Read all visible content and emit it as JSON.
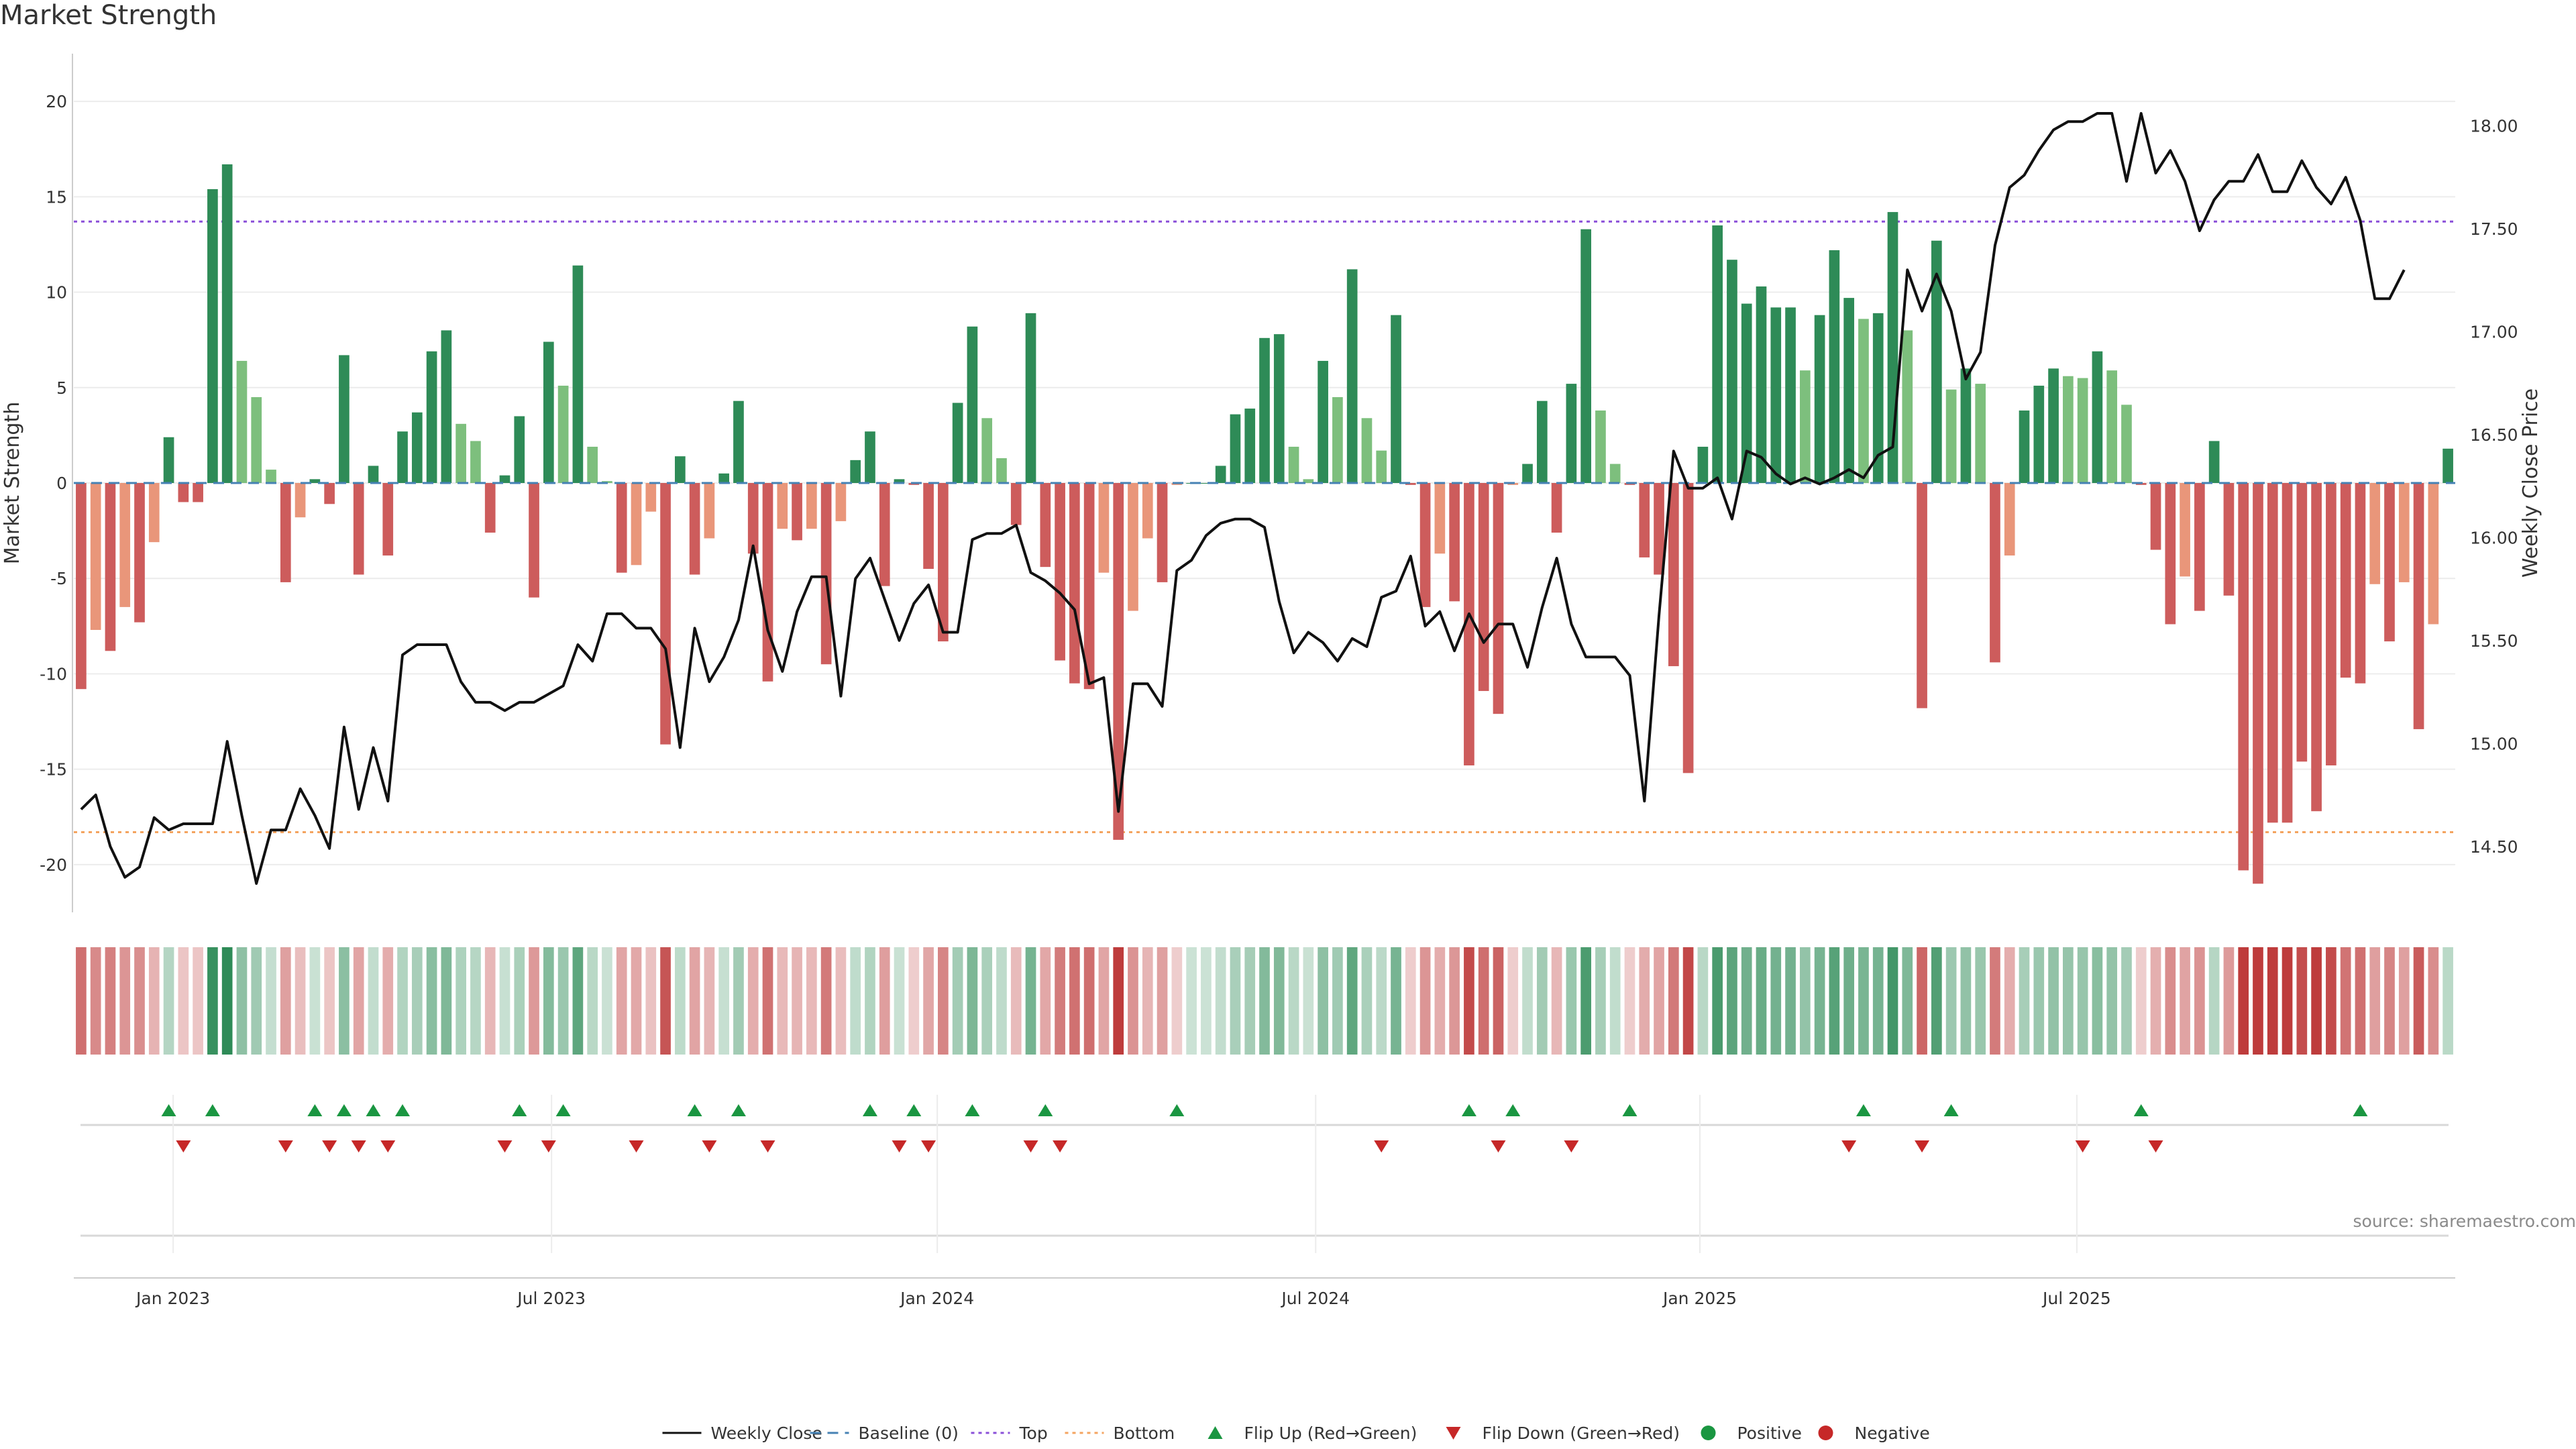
{
  "title": "Market Strength",
  "source": "source: sharemaestro.com",
  "colors": {
    "strong_green": "#2e8b57",
    "light_green": "#7dbf7d",
    "strong_red": "#cd5c5c",
    "light_red": "#e9967a",
    "top_line": "#8a4fd8",
    "bottom_line": "#f4a460",
    "baseline": "#4682b4",
    "close_line": "#111111",
    "flip_up": "#1a9641",
    "flip_down": "#c62828"
  },
  "chart_data": {
    "type": "bar",
    "y_left": {
      "label": "Market Strength",
      "range": [
        -22.5,
        22.5
      ],
      "ticks": [
        20,
        15,
        10,
        5,
        0,
        -5,
        -10,
        -15,
        -20
      ]
    },
    "y_right": {
      "label": "Weekly Close Price",
      "range": [
        14.18,
        18.35
      ],
      "ticks": [
        "18.00",
        "17.50",
        "17.00",
        "16.50",
        "16.00",
        "15.50",
        "15.00",
        "14.50"
      ]
    },
    "x_ticks": [
      "Jan 2023",
      "Jul 2023",
      "Jan 2024",
      "Jul 2024",
      "Jan 2025",
      "Jul 2025"
    ],
    "x_tick_weeks": [
      6.8,
      32.7,
      59.1,
      85.0,
      111.3,
      137.1
    ],
    "top_level": 13.7,
    "bottom_level": -18.3,
    "strength": [
      -10.8,
      -7.7,
      -8.8,
      -6.5,
      -7.3,
      -3.1,
      2.4,
      -1.0,
      -1.0,
      15.4,
      16.7,
      6.4,
      4.5,
      0.7,
      -5.2,
      -1.8,
      0.2,
      -1.1,
      6.7,
      -4.8,
      0.9,
      -3.8,
      2.7,
      3.7,
      6.9,
      8.0,
      3.1,
      2.2,
      -2.6,
      0.4,
      3.5,
      -6.0,
      7.4,
      5.1,
      11.4,
      1.9,
      0.1,
      -4.7,
      -4.3,
      -1.5,
      -13.7,
      1.4,
      -4.8,
      -2.9,
      0.5,
      4.3,
      -3.7,
      -10.4,
      -2.4,
      -3.0,
      -2.4,
      -9.5,
      -2.0,
      1.2,
      2.7,
      -5.4,
      0.2,
      -0.1,
      -4.5,
      -8.3,
      4.2,
      8.2,
      3.4,
      1.3,
      -2.2,
      8.9,
      -4.4,
      -9.3,
      -10.5,
      -10.8,
      -4.7,
      -18.7,
      -6.7,
      -2.9,
      -5.2,
      -0.1,
      0.0,
      0.0,
      0.9,
      3.6,
      3.9,
      7.6,
      7.8,
      1.9,
      0.2,
      6.4,
      4.5,
      11.2,
      3.4,
      1.7,
      8.8,
      -0.1,
      -6.5,
      -3.7,
      -6.2,
      -14.8,
      -10.9,
      -12.1,
      -0.1,
      1.0,
      4.3,
      -2.6,
      5.2,
      13.3,
      3.8,
      1.0,
      -0.1,
      -3.9,
      -4.8,
      -9.6,
      -15.2,
      1.9,
      13.5,
      11.7,
      9.4,
      10.3,
      9.2,
      9.2,
      5.9,
      8.8,
      12.2,
      9.7,
      8.6,
      8.9,
      14.2,
      8.0,
      -11.8,
      12.7,
      4.9,
      6.0,
      5.2,
      -9.4,
      -3.8,
      3.8,
      5.1,
      6.0,
      5.6,
      5.5,
      6.9,
      5.9,
      4.1,
      -0.1,
      -3.5,
      -7.4,
      -4.9,
      -6.7,
      2.2,
      -5.9,
      -20.3,
      -21.0,
      -17.8,
      -17.8,
      -14.6,
      -17.2,
      -14.8,
      -10.2,
      -10.5,
      -5.3,
      -8.3,
      -5.2,
      -12.9,
      -7.4,
      1.8
    ],
    "weekly_close": [
      14.68,
      14.75,
      14.5,
      14.35,
      14.4,
      14.64,
      14.58,
      14.61,
      14.61,
      14.61,
      15.01,
      14.65,
      14.32,
      14.58,
      14.58,
      14.78,
      14.65,
      14.49,
      15.08,
      14.68,
      14.98,
      14.72,
      15.43,
      15.48,
      15.48,
      15.48,
      15.3,
      15.2,
      15.2,
      15.16,
      15.2,
      15.2,
      15.24,
      15.28,
      15.48,
      15.4,
      15.63,
      15.63,
      15.56,
      15.56,
      15.46,
      14.98,
      15.56,
      15.3,
      15.42,
      15.6,
      15.96,
      15.55,
      15.35,
      15.64,
      15.81,
      15.81,
      15.23,
      15.8,
      15.9,
      15.7,
      15.5,
      15.68,
      15.77,
      15.54,
      15.54,
      15.99,
      16.02,
      16.02,
      16.06,
      15.83,
      15.79,
      15.73,
      15.65,
      15.29,
      15.32,
      14.67,
      15.29,
      15.29,
      15.18,
      15.84,
      15.89,
      16.01,
      16.07,
      16.09,
      16.09,
      16.05,
      15.69,
      15.44,
      15.54,
      15.49,
      15.4,
      15.51,
      15.47,
      15.71,
      15.74,
      15.91,
      15.57,
      15.64,
      15.45,
      15.63,
      15.49,
      15.58,
      15.58,
      15.37,
      15.66,
      15.9,
      15.58,
      15.42,
      15.42,
      15.42,
      15.33,
      14.72,
      15.62,
      16.42,
      16.24,
      16.24,
      16.29,
      16.09,
      16.42,
      16.39,
      16.31,
      16.26,
      16.29,
      16.26,
      16.29,
      16.33,
      16.29,
      16.4,
      16.44,
      17.3,
      17.1,
      17.28,
      17.1,
      16.77,
      16.9,
      17.42,
      17.7,
      17.76,
      17.88,
      17.98,
      18.02,
      18.02,
      18.06,
      18.06,
      17.73,
      18.06,
      17.77,
      17.88,
      17.73,
      17.49,
      17.64,
      17.73,
      17.73,
      17.86,
      17.68,
      17.68,
      17.83,
      17.7,
      17.62,
      17.75,
      17.54,
      17.16,
      17.16,
      17.3
    ],
    "flip_up_weeks": [
      6,
      9,
      16,
      18,
      20,
      22,
      30,
      33,
      42,
      45,
      54,
      57,
      61,
      66,
      75,
      95,
      98,
      106,
      122,
      128,
      141,
      156
    ],
    "flip_down_weeks": [
      7,
      14,
      17,
      19,
      21,
      29,
      32,
      38,
      43,
      47,
      56,
      58,
      65,
      67,
      89,
      97,
      102,
      121,
      126,
      137,
      142
    ]
  },
  "legend": [
    {
      "label": "Weekly Close",
      "kind": "line-solid",
      "color": "#111111"
    },
    {
      "label": "Baseline (0)",
      "kind": "line-dashed",
      "color": "#4682b4"
    },
    {
      "label": "Top",
      "kind": "line-dotted",
      "color": "#8a4fd8"
    },
    {
      "label": "Bottom",
      "kind": "line-dotted",
      "color": "#f4a460"
    },
    {
      "label": "Flip Up (Red→Green)",
      "kind": "tri-up",
      "color": "#1a9641"
    },
    {
      "label": "Flip Down (Green→Red)",
      "kind": "tri-down",
      "color": "#c62828"
    },
    {
      "label": "Positive",
      "kind": "dot",
      "color": "#1a9641"
    },
    {
      "label": "Negative",
      "kind": "dot",
      "color": "#c62828"
    }
  ]
}
